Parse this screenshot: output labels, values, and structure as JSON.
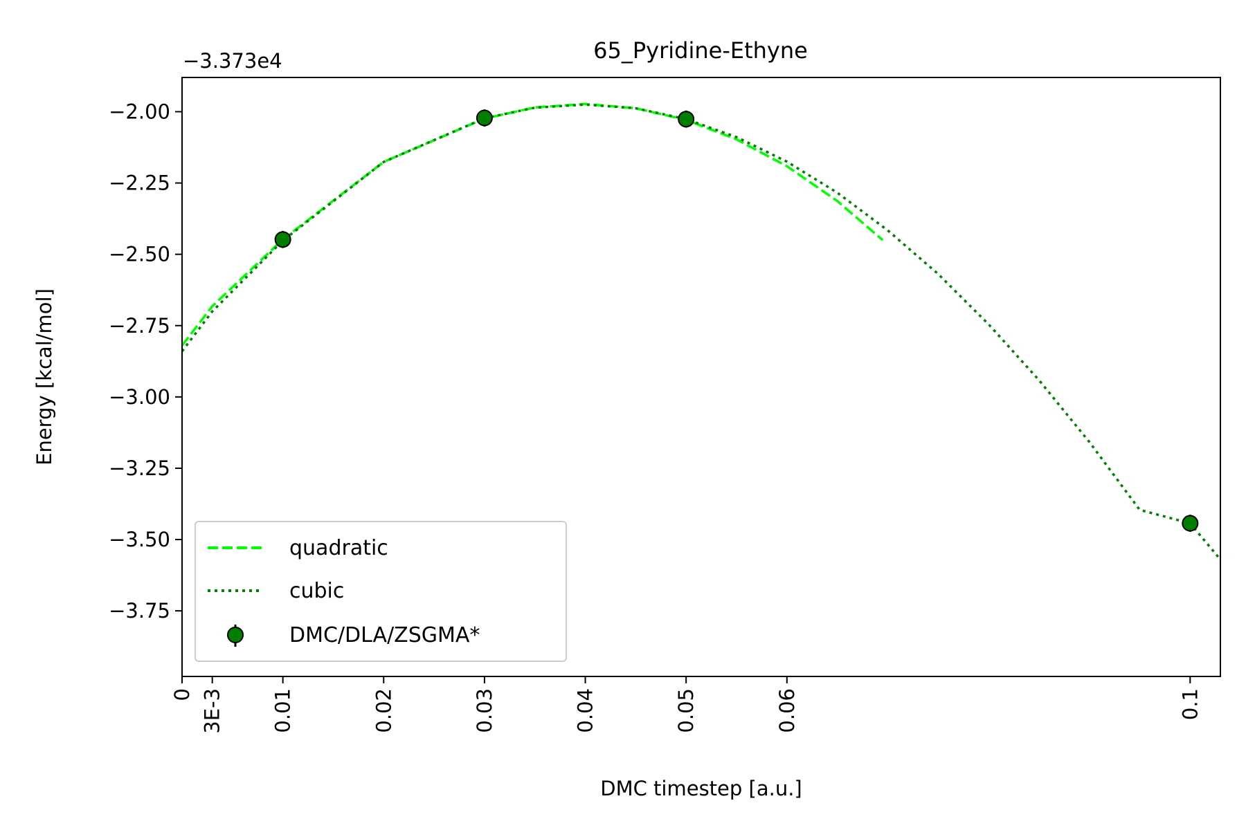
{
  "chart_data": {
    "type": "line",
    "title": "65_Pyridine-Ethyne",
    "xlabel": "DMC timestep [a.u.]",
    "ylabel": "Energy [kcal/mol]",
    "offset_text": "−3.373e4",
    "xlim": [
      0,
      0.103
    ],
    "ylim": [
      -3.98,
      -1.88
    ],
    "x_ticks": [
      {
        "value": 0,
        "label": "0"
      },
      {
        "value": 0.003,
        "label": "3E-3"
      },
      {
        "value": 0.01,
        "label": "0.01"
      },
      {
        "value": 0.02,
        "label": "0.02"
      },
      {
        "value": 0.03,
        "label": "0.03"
      },
      {
        "value": 0.04,
        "label": "0.04"
      },
      {
        "value": 0.05,
        "label": "0.05"
      },
      {
        "value": 0.06,
        "label": "0.06"
      },
      {
        "value": 0.1,
        "label": "0.1"
      }
    ],
    "y_ticks": [
      {
        "value": -2.0,
        "label": "−2.00"
      },
      {
        "value": -2.25,
        "label": "−2.25"
      },
      {
        "value": -2.5,
        "label": "−2.50"
      },
      {
        "value": -2.75,
        "label": "−2.75"
      },
      {
        "value": -3.0,
        "label": "−3.00"
      },
      {
        "value": -3.25,
        "label": "−3.25"
      },
      {
        "value": -3.5,
        "label": "−3.50"
      },
      {
        "value": -3.75,
        "label": "−3.75"
      }
    ],
    "grid": false,
    "legend_position": "lower-left",
    "series": [
      {
        "name": "quadratic",
        "style": "dashed",
        "color": "#00ff00",
        "x": [
          0,
          0.003,
          0.01,
          0.02,
          0.03,
          0.035,
          0.04,
          0.045,
          0.05,
          0.055,
          0.06,
          0.065,
          0.0695
        ],
        "y": [
          -2.82,
          -2.682,
          -2.448,
          -2.176,
          -2.024,
          -1.985,
          -1.973,
          -1.988,
          -2.029,
          -2.097,
          -2.191,
          -2.313,
          -2.45
        ]
      },
      {
        "name": "cubic",
        "style": "dotted",
        "color": "#007f00",
        "x": [
          0,
          0.003,
          0.01,
          0.02,
          0.03,
          0.035,
          0.04,
          0.045,
          0.05,
          0.055,
          0.06,
          0.065,
          0.07,
          0.075,
          0.08,
          0.085,
          0.09,
          0.095,
          0.1,
          0.103
        ],
        "y": [
          -2.84,
          -2.7,
          -2.452,
          -2.176,
          -2.023,
          -1.986,
          -1.975,
          -1.988,
          -2.026,
          -2.089,
          -2.175,
          -2.284,
          -2.416,
          -2.569,
          -2.745,
          -2.941,
          -3.158,
          -3.396,
          -3.443,
          -3.57
        ]
      },
      {
        "name": "DMC/DLA/ZSGMA*",
        "style": "markers",
        "color": "#007f00",
        "x": [
          0.01,
          0.03,
          0.05,
          0.1
        ],
        "y": [
          -2.448,
          -2.022,
          -2.026,
          -3.443
        ],
        "yerr": [
          0.03,
          0.03,
          0.03,
          0.03
        ]
      }
    ]
  }
}
